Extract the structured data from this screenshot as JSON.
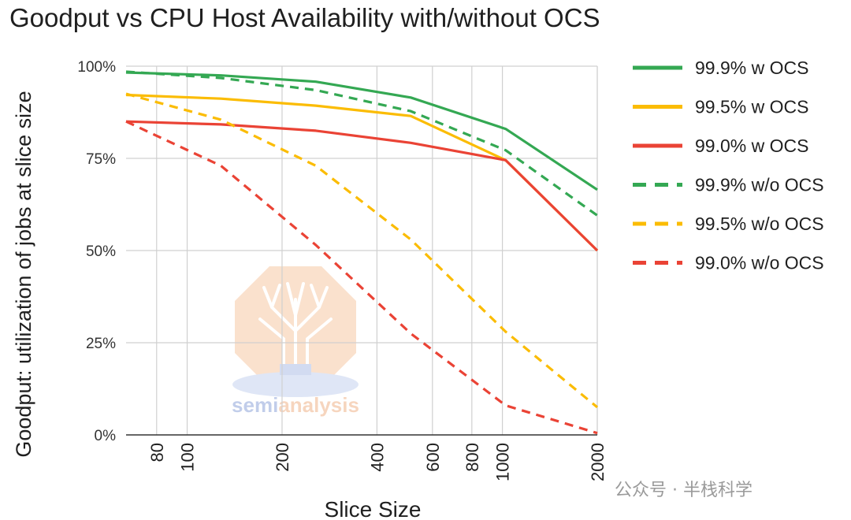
{
  "chart_data": {
    "type": "line",
    "title": "Goodput vs CPU Host Availability with/without OCS",
    "xlabel": "Slice Size",
    "ylabel": "Goodput: utilization of jobs at slice size",
    "x_scale": "log",
    "x_ticks": [
      80,
      100,
      200,
      400,
      600,
      800,
      1000,
      2000
    ],
    "x_tick_labels": [
      "80",
      "100",
      "200",
      "400",
      "600",
      "800",
      "1000",
      "2000"
    ],
    "xlim": [
      64,
      2000
    ],
    "y_ticks": [
      0,
      25,
      50,
      75,
      100
    ],
    "y_tick_labels": [
      "0%",
      "25%",
      "50%",
      "75%",
      "100%"
    ],
    "ylim": [
      0,
      100
    ],
    "grid": true,
    "legend_position": "right",
    "series": [
      {
        "name": "99.9% w OCS",
        "color": "#34a853",
        "dash": false,
        "x": [
          64,
          128,
          256,
          512,
          1024,
          2000
        ],
        "y": [
          98.3,
          97.5,
          95.8,
          91.5,
          83,
          66.5
        ]
      },
      {
        "name": "99.5% w OCS",
        "color": "#fbbc04",
        "dash": false,
        "x": [
          64,
          128,
          256,
          512,
          1024,
          2000
        ],
        "y": [
          92.2,
          91.2,
          89.3,
          86.5,
          74.5,
          50
        ]
      },
      {
        "name": "99.0% w OCS",
        "color": "#ea4335",
        "dash": false,
        "x": [
          64,
          128,
          256,
          512,
          1024,
          2000
        ],
        "y": [
          85,
          84.2,
          82.5,
          79.2,
          74.5,
          50
        ]
      },
      {
        "name": "99.9% w/o OCS",
        "color": "#34a853",
        "dash": true,
        "x": [
          64,
          128,
          256,
          512,
          1024,
          2000
        ],
        "y": [
          98.5,
          96.8,
          93.5,
          87.8,
          77.2,
          59.5
        ]
      },
      {
        "name": "99.5% w/o OCS",
        "color": "#fbbc04",
        "dash": true,
        "x": [
          64,
          128,
          256,
          512,
          1024,
          2000
        ],
        "y": [
          92.5,
          85.5,
          73,
          53,
          28,
          7.5
        ]
      },
      {
        "name": "99.0% w/o OCS",
        "color": "#ea4335",
        "dash": true,
        "x": [
          64,
          128,
          256,
          512,
          1024,
          2000
        ],
        "y": [
          85,
          73,
          51.5,
          27.5,
          8,
          0.5
        ]
      }
    ]
  },
  "watermark": {
    "text_part1": "semi",
    "text_part2": "analysis"
  },
  "footer": {
    "text": "公众号 · 半栈科学"
  }
}
